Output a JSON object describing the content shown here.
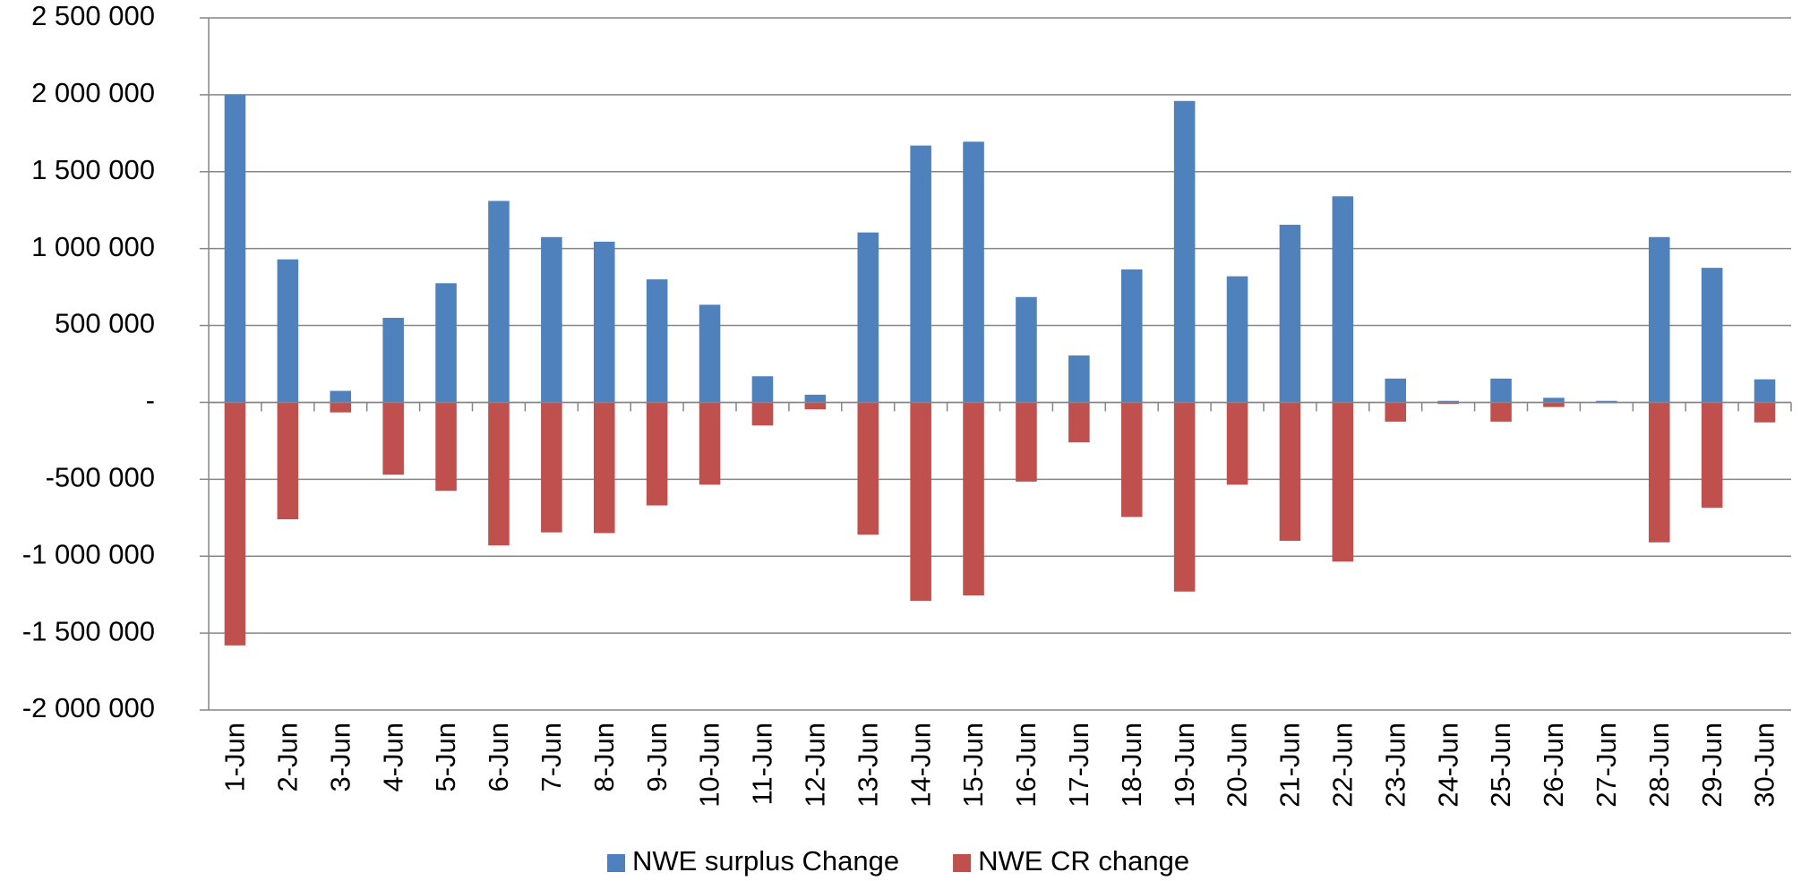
{
  "chart_data": {
    "type": "bar",
    "categories": [
      "1-Jun",
      "2-Jun",
      "3-Jun",
      "4-Jun",
      "5-Jun",
      "6-Jun",
      "7-Jun",
      "8-Jun",
      "9-Jun",
      "10-Jun",
      "11-Jun",
      "12-Jun",
      "13-Jun",
      "14-Jun",
      "15-Jun",
      "16-Jun",
      "17-Jun",
      "18-Jun",
      "19-Jun",
      "20-Jun",
      "21-Jun",
      "22-Jun",
      "23-Jun",
      "24-Jun",
      "25-Jun",
      "26-Jun",
      "27-Jun",
      "28-Jun",
      "29-Jun",
      "30-Jun"
    ],
    "series": [
      {
        "name": "NWE surplus Change",
        "color": "#4f81bd",
        "values": [
          2000000,
          930000,
          75000,
          550000,
          775000,
          1310000,
          1075000,
          1045000,
          800000,
          635000,
          170000,
          50000,
          1105000,
          1670000,
          1695000,
          685000,
          305000,
          865000,
          1960000,
          820000,
          1155000,
          1340000,
          155000,
          10000,
          155000,
          30000,
          10000,
          1075000,
          875000,
          150000
        ]
      },
      {
        "name": "NWE CR change",
        "color": "#c0504d",
        "values": [
          -1580000,
          -760000,
          -65000,
          -470000,
          -575000,
          -930000,
          -845000,
          -850000,
          -670000,
          -535000,
          -150000,
          -45000,
          -860000,
          -1290000,
          -1255000,
          -515000,
          -260000,
          -745000,
          -1230000,
          -535000,
          -900000,
          -1035000,
          -125000,
          -10000,
          -125000,
          -30000,
          -5000,
          -910000,
          -685000,
          -130000
        ]
      }
    ],
    "ylim": [
      -2000000,
      2500000
    ],
    "yticks": [
      {
        "value": -2000000,
        "label": "-2 000 000"
      },
      {
        "value": -1500000,
        "label": "-1 500 000"
      },
      {
        "value": -1000000,
        "label": "-1 000 000"
      },
      {
        "value": -500000,
        "label": "-500 000"
      },
      {
        "value": 0,
        "label": "-"
      },
      {
        "value": 500000,
        "label": "500 000"
      },
      {
        "value": 1000000,
        "label": "1 000 000"
      },
      {
        "value": 1500000,
        "label": "1 500 000"
      },
      {
        "value": 2000000,
        "label": "2 000 000"
      },
      {
        "value": 2500000,
        "label": "2 500 000"
      }
    ],
    "grid": true,
    "legend": "bottom"
  }
}
